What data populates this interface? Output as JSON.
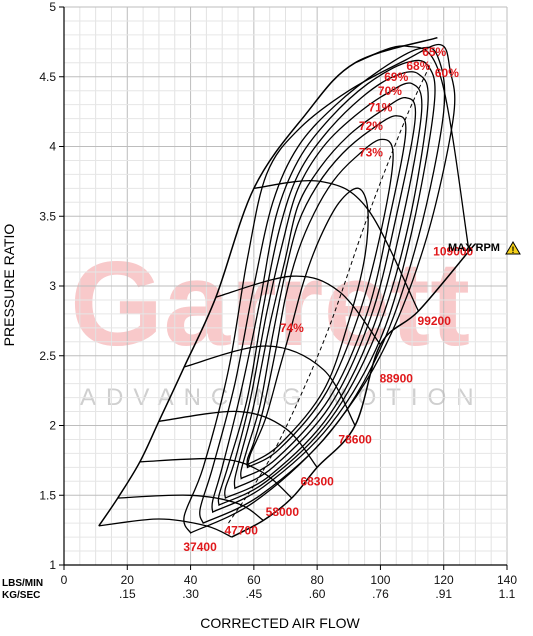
{
  "chart_data": {
    "type": "line",
    "title": "",
    "xlabel": "CORRECTED AIR FLOW",
    "ylabel": "PRESSURE RATIO",
    "x_unit_primary": "LBS/MIN",
    "x_unit_secondary": "KG/SEC",
    "xlim": [
      0,
      140
    ],
    "ylim": [
      1,
      5
    ],
    "x_ticks": [
      {
        "value": 0,
        "label": "0",
        "secondary": ""
      },
      {
        "value": 20,
        "label": "20",
        "secondary": ".15"
      },
      {
        "value": 40,
        "label": "40",
        "secondary": ".30"
      },
      {
        "value": 60,
        "label": "60",
        "secondary": ".45"
      },
      {
        "value": 80,
        "label": "80",
        "secondary": ".60"
      },
      {
        "value": 100,
        "label": "100",
        "secondary": ".76"
      },
      {
        "value": 120,
        "label": "120",
        "secondary": ".91"
      },
      {
        "value": 140,
        "label": "140",
        "secondary": "1.1"
      }
    ],
    "y_ticks": [
      {
        "value": 1,
        "label": "1"
      },
      {
        "value": 1.5,
        "label": "1.5"
      },
      {
        "value": 2,
        "label": "2"
      },
      {
        "value": 2.5,
        "label": "2.5"
      },
      {
        "value": 3,
        "label": "3"
      },
      {
        "value": 3.5,
        "label": "3.5"
      },
      {
        "value": 4,
        "label": "4"
      },
      {
        "value": 4.5,
        "label": "4.5"
      },
      {
        "value": 5,
        "label": "5"
      }
    ],
    "grid": true,
    "watermark": {
      "brand": "Garrett",
      "tagline": "ADVANCING MOTION"
    },
    "max_rpm": {
      "label": "MAX RPM",
      "icon": "warning-icon",
      "rpm": "109000"
    },
    "speed_lines": [
      {
        "rpm": "37400",
        "points": [
          [
            11,
            1.28
          ],
          [
            30,
            1.33
          ],
          [
            45,
            1.28
          ],
          [
            53,
            1.2
          ]
        ]
      },
      {
        "rpm": "47700",
        "points": [
          [
            17,
            1.48
          ],
          [
            40,
            1.5
          ],
          [
            55,
            1.44
          ],
          [
            63,
            1.32
          ]
        ]
      },
      {
        "rpm": "58000",
        "points": [
          [
            24,
            1.74
          ],
          [
            50,
            1.76
          ],
          [
            63,
            1.66
          ],
          [
            72,
            1.48
          ]
        ]
      },
      {
        "rpm": "68300",
        "points": [
          [
            30,
            2.03
          ],
          [
            55,
            2.1
          ],
          [
            70,
            1.98
          ],
          [
            80,
            1.7
          ]
        ]
      },
      {
        "rpm": "78600",
        "points": [
          [
            38,
            2.42
          ],
          [
            64,
            2.57
          ],
          [
            82,
            2.4
          ],
          [
            92,
            2.0
          ]
        ]
      },
      {
        "rpm": "88900",
        "points": [
          [
            48,
            2.92
          ],
          [
            72,
            3.07
          ],
          [
            87,
            2.96
          ],
          [
            100,
            2.58
          ]
        ]
      },
      {
        "rpm": "99200",
        "points": [
          [
            60,
            3.7
          ],
          [
            81,
            3.75
          ],
          [
            96,
            3.55
          ],
          [
            112,
            2.82
          ]
        ]
      },
      {
        "rpm": "109000",
        "points": [
          [
            92,
            4.6
          ],
          [
            108,
            4.72
          ],
          [
            119,
            4.5
          ],
          [
            128,
            3.25
          ]
        ]
      }
    ],
    "surge_line": [
      [
        11,
        1.28
      ],
      [
        17,
        1.48
      ],
      [
        24,
        1.74
      ],
      [
        30,
        2.03
      ],
      [
        38,
        2.42
      ],
      [
        48,
        2.92
      ],
      [
        60,
        3.7
      ],
      [
        76,
        4.22
      ],
      [
        92,
        4.6
      ],
      [
        118,
        4.78
      ]
    ],
    "choke_line": [
      [
        53,
        1.2
      ],
      [
        63,
        1.32
      ],
      [
        72,
        1.48
      ],
      [
        80,
        1.7
      ],
      [
        92,
        2.0
      ],
      [
        100,
        2.58
      ],
      [
        112,
        2.82
      ],
      [
        128,
        3.25
      ],
      [
        130,
        3.3
      ]
    ],
    "efficiency_islands": [
      {
        "label": "60%",
        "points": [
          [
            40,
            1.23
          ],
          [
            60,
            1.45
          ],
          [
            82,
            1.9
          ],
          [
            100,
            2.5
          ],
          [
            114,
            3.3
          ],
          [
            123,
            4.2
          ],
          [
            122,
            4.55
          ],
          [
            119,
            4.73
          ],
          [
            108,
            4.62
          ],
          [
            90,
            4.4
          ],
          [
            74,
            4.12
          ],
          [
            64,
            3.8
          ],
          [
            58,
            3.2
          ],
          [
            52,
            2.4
          ],
          [
            44,
            1.7
          ],
          [
            38,
            1.35
          ],
          [
            40,
            1.23
          ]
        ]
      },
      {
        "label": "65%",
        "points": [
          [
            44,
            1.3
          ],
          [
            62,
            1.5
          ],
          [
            84,
            1.95
          ],
          [
            100,
            2.55
          ],
          [
            112,
            3.35
          ],
          [
            120,
            4.25
          ],
          [
            118,
            4.65
          ],
          [
            112,
            4.7
          ],
          [
            100,
            4.55
          ],
          [
            86,
            4.3
          ],
          [
            74,
            4.0
          ],
          [
            66,
            3.6
          ],
          [
            60,
            3.0
          ],
          [
            54,
            2.3
          ],
          [
            47,
            1.7
          ],
          [
            43,
            1.4
          ],
          [
            44,
            1.3
          ]
        ]
      },
      {
        "label": "68%",
        "points": [
          [
            47,
            1.38
          ],
          [
            63,
            1.56
          ],
          [
            84,
            2.0
          ],
          [
            100,
            2.62
          ],
          [
            110,
            3.4
          ],
          [
            117,
            4.3
          ],
          [
            115,
            4.58
          ],
          [
            108,
            4.6
          ],
          [
            96,
            4.45
          ],
          [
            84,
            4.2
          ],
          [
            74,
            3.9
          ],
          [
            67,
            3.5
          ],
          [
            62,
            2.9
          ],
          [
            56,
            2.25
          ],
          [
            50,
            1.7
          ],
          [
            47,
            1.46
          ],
          [
            47,
            1.38
          ]
        ]
      },
      {
        "label": "69%",
        "points": [
          [
            49,
            1.43
          ],
          [
            64,
            1.6
          ],
          [
            84,
            2.04
          ],
          [
            99,
            2.68
          ],
          [
            109,
            3.45
          ],
          [
            115,
            4.3
          ],
          [
            112,
            4.52
          ],
          [
            104,
            4.5
          ],
          [
            94,
            4.35
          ],
          [
            83,
            4.1
          ],
          [
            74,
            3.8
          ],
          [
            68,
            3.4
          ],
          [
            63,
            2.85
          ],
          [
            58,
            2.2
          ],
          [
            52,
            1.72
          ],
          [
            49,
            1.5
          ],
          [
            49,
            1.43
          ]
        ]
      },
      {
        "label": "70%",
        "points": [
          [
            51,
            1.48
          ],
          [
            65,
            1.64
          ],
          [
            84,
            2.08
          ],
          [
            98,
            2.72
          ],
          [
            107,
            3.48
          ],
          [
            113,
            4.25
          ],
          [
            110,
            4.45
          ],
          [
            102,
            4.38
          ],
          [
            92,
            4.22
          ],
          [
            82,
            4.0
          ],
          [
            74,
            3.7
          ],
          [
            69,
            3.3
          ],
          [
            64,
            2.8
          ],
          [
            59,
            2.2
          ],
          [
            54,
            1.75
          ],
          [
            51,
            1.55
          ],
          [
            51,
            1.48
          ]
        ]
      },
      {
        "label": "71%",
        "points": [
          [
            54,
            1.55
          ],
          [
            66,
            1.7
          ],
          [
            84,
            2.14
          ],
          [
            97,
            2.78
          ],
          [
            105,
            3.5
          ],
          [
            111,
            4.2
          ],
          [
            108,
            4.35
          ],
          [
            100,
            4.25
          ],
          [
            90,
            4.08
          ],
          [
            81,
            3.85
          ],
          [
            74,
            3.58
          ],
          [
            70,
            3.2
          ],
          [
            65,
            2.72
          ],
          [
            60,
            2.15
          ],
          [
            56,
            1.8
          ],
          [
            54,
            1.62
          ],
          [
            54,
            1.55
          ]
        ]
      },
      {
        "label": "72%",
        "points": [
          [
            56,
            1.62
          ],
          [
            67,
            1.76
          ],
          [
            84,
            2.2
          ],
          [
            96,
            2.82
          ],
          [
            103,
            3.5
          ],
          [
            108,
            4.1
          ],
          [
            105,
            4.22
          ],
          [
            97,
            4.12
          ],
          [
            88,
            3.95
          ],
          [
            80,
            3.72
          ],
          [
            74,
            3.45
          ],
          [
            70,
            3.1
          ],
          [
            66,
            2.65
          ],
          [
            62,
            2.15
          ],
          [
            58,
            1.84
          ],
          [
            56,
            1.68
          ],
          [
            56,
            1.62
          ]
        ]
      },
      {
        "label": "73%",
        "points": [
          [
            58,
            1.7
          ],
          [
            68,
            1.83
          ],
          [
            83,
            2.24
          ],
          [
            94,
            2.85
          ],
          [
            101,
            3.48
          ],
          [
            104,
            3.95
          ],
          [
            100,
            4.05
          ],
          [
            92,
            3.92
          ],
          [
            85,
            3.75
          ],
          [
            79,
            3.52
          ],
          [
            74,
            3.25
          ],
          [
            70,
            2.92
          ],
          [
            67,
            2.55
          ],
          [
            63,
            2.12
          ],
          [
            60,
            1.88
          ],
          [
            58,
            1.76
          ],
          [
            58,
            1.7
          ]
        ]
      },
      {
        "label": "74%",
        "points": [
          [
            58,
            1.72
          ],
          [
            68,
            1.86
          ],
          [
            82,
            2.25
          ],
          [
            90,
            2.75
          ],
          [
            95,
            3.2
          ],
          [
            96,
            3.55
          ],
          [
            93,
            3.7
          ],
          [
            87,
            3.6
          ],
          [
            81,
            3.35
          ],
          [
            76,
            3.05
          ],
          [
            72,
            2.72
          ],
          [
            68,
            2.4
          ],
          [
            64,
            2.07
          ],
          [
            61,
            1.9
          ],
          [
            59,
            1.8
          ],
          [
            58,
            1.72
          ]
        ]
      }
    ],
    "centerline": [
      [
        52,
        1.3
      ],
      [
        66,
        1.8
      ],
      [
        82,
        2.6
      ],
      [
        96,
        3.5
      ],
      [
        108,
        4.2
      ],
      [
        116,
        4.6
      ]
    ],
    "efficiency_label_positions": [
      {
        "label": "65%",
        "x": 117,
        "y": 4.65
      },
      {
        "label": "68%",
        "x": 112,
        "y": 4.55
      },
      {
        "label": "69%",
        "x": 105,
        "y": 4.47
      },
      {
        "label": "70%",
        "x": 103,
        "y": 4.37
      },
      {
        "label": "71%",
        "x": 100,
        "y": 4.25
      },
      {
        "label": "72%",
        "x": 97,
        "y": 4.12
      },
      {
        "label": "73%",
        "x": 97,
        "y": 3.93
      },
      {
        "label": "60%",
        "x": 121,
        "y": 4.5
      },
      {
        "label": "74%",
        "x": 72,
        "y": 2.67
      }
    ],
    "rpm_label_positions": [
      {
        "label": "37400",
        "x": 43,
        "y": 1.1
      },
      {
        "label": "47700",
        "x": 56,
        "y": 1.22
      },
      {
        "label": "58000",
        "x": 69,
        "y": 1.35
      },
      {
        "label": "68300",
        "x": 80,
        "y": 1.57
      },
      {
        "label": "78600",
        "x": 92,
        "y": 1.87
      },
      {
        "label": "88900",
        "x": 105,
        "y": 2.31
      },
      {
        "label": "99200",
        "x": 117,
        "y": 2.72
      },
      {
        "label": "109000",
        "x": 123,
        "y": 3.22
      }
    ]
  }
}
